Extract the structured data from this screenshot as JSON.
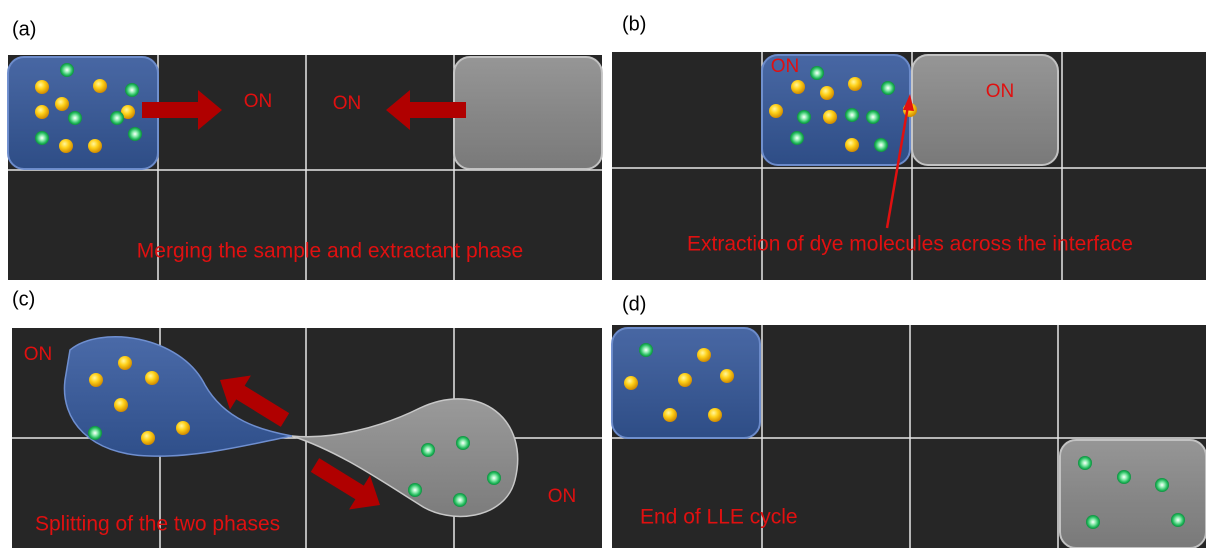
{
  "panels": [
    {
      "label": "(a)",
      "on_labels": [
        "ON",
        "ON"
      ],
      "caption": "Merging the sample and extractant phase"
    },
    {
      "label": "(b)",
      "on_labels": [
        "ON",
        "ON"
      ],
      "caption": "Extraction of dye molecules across the interface"
    },
    {
      "label": "(c)",
      "on_labels": [
        "ON",
        "ON"
      ],
      "caption": "Splitting of the two phases"
    },
    {
      "label": "(d)",
      "caption": "End of LLE cycle"
    }
  ]
}
